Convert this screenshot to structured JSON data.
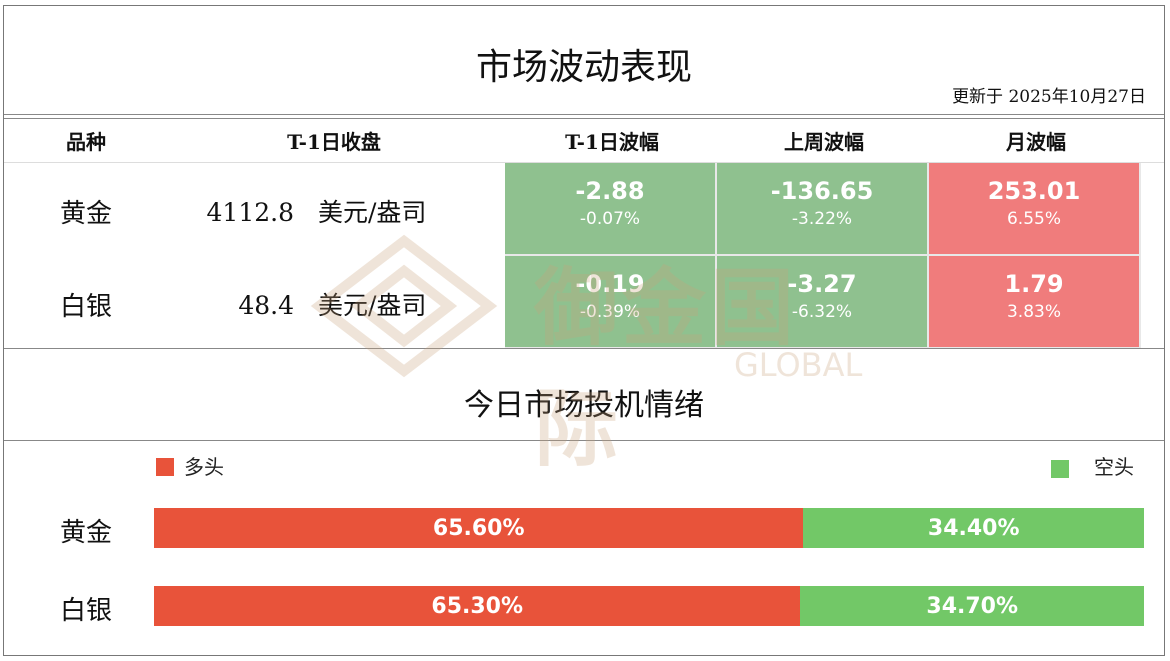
{
  "title": "市场波动表现",
  "updated": "更新于  2025年10月27日",
  "headers": [
    "品种",
    "T-1日收盘",
    "T-1日波幅",
    "上周波幅",
    "月波幅"
  ],
  "rows": [
    {
      "name": "黄金",
      "close": "4112.8",
      "unit": "美元/盎司",
      "cells": [
        {
          "value": "-2.88",
          "pct": "-0.07%",
          "color": "#8fc18f"
        },
        {
          "value": "-136.65",
          "pct": "-3.22%",
          "color": "#8fc18f"
        },
        {
          "value": "253.01",
          "pct": "6.55%",
          "color": "#f07c7c"
        }
      ]
    },
    {
      "name": "白银",
      "close": "48.4",
      "unit": "美元/盎司",
      "cells": [
        {
          "value": "-0.19",
          "pct": "-0.39%",
          "color": "#8fc18f"
        },
        {
          "value": "-3.27",
          "pct": "-6.32%",
          "color": "#8fc18f"
        },
        {
          "value": "1.79",
          "pct": "3.83%",
          "color": "#f07c7c"
        }
      ]
    }
  ],
  "sentiment": {
    "title": "今日市场投机情绪",
    "long_label": "多头",
    "short_label": "空头",
    "long_color": "#e8533a",
    "short_color": "#72c867",
    "items": [
      {
        "name": "黄金",
        "long": 65.6,
        "short": 34.4,
        "long_text": "65.60%",
        "short_text": "34.40%"
      },
      {
        "name": "白银",
        "long": 65.3,
        "short": 34.7,
        "long_text": "65.30%",
        "short_text": "34.70%"
      }
    ]
  },
  "watermark": {
    "cn": "御金国际",
    "en": "GLOBAL"
  }
}
